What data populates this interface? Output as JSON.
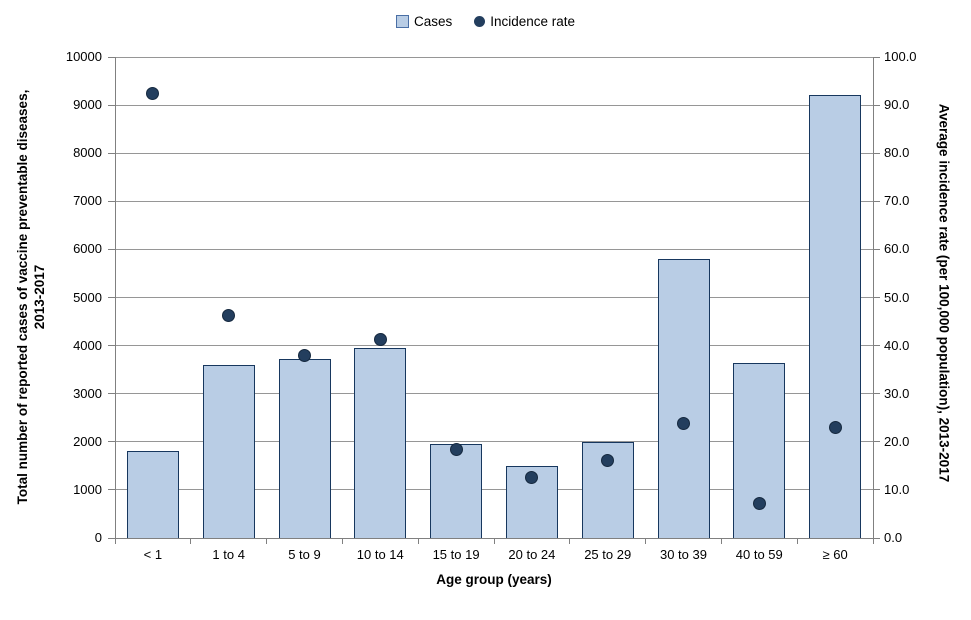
{
  "legend": {
    "cases_label": "Cases",
    "incidence_label": "Incidence rate"
  },
  "axes": {
    "left_title_line1": "Total number of reported cases of vaccine preventable diseases,",
    "left_title_line2": "2013-2017",
    "right_title": "Average incidence rate (per 100,000 population), 2013-2017",
    "x_title": "Age group (years)"
  },
  "chart_data": {
    "type": "bar",
    "subtype": "bar-with-scatter-overlay-dual-axis",
    "categories": [
      "< 1",
      "1 to 4",
      "5 to 9",
      "10 to 14",
      "15 to 19",
      "20 to 24",
      "25 to 29",
      "30 to 39",
      "40 to 59",
      "≥ 60"
    ],
    "series": [
      {
        "name": "Cases",
        "type": "bar",
        "axis": "left",
        "values": [
          1800,
          3600,
          3730,
          3950,
          1950,
          1490,
          1990,
          5800,
          3640,
          9200
        ]
      },
      {
        "name": "Incidence rate",
        "type": "scatter",
        "axis": "right",
        "values": [
          92.4,
          46.3,
          37.9,
          41.3,
          18.5,
          12.5,
          16.1,
          23.8,
          7.2,
          23.0
        ]
      }
    ],
    "title": "",
    "xlabel": "Age group (years)",
    "ylabel_left": "Total number of reported cases of vaccine preventable diseases, 2013-2017",
    "ylabel_right": "Average incidence rate (per 100,000 population), 2013-2017",
    "left_axis": {
      "min": 0,
      "max": 10000,
      "step": 1000,
      "tick_labels": [
        "0",
        "1000",
        "2000",
        "3000",
        "4000",
        "5000",
        "6000",
        "7000",
        "8000",
        "9000",
        "10000"
      ]
    },
    "right_axis": {
      "min": 0,
      "max": 100,
      "step": 10,
      "tick_labels": [
        "0.0",
        "10.0",
        "20.0",
        "30.0",
        "40.0",
        "50.0",
        "60.0",
        "70.0",
        "80.0",
        "90.0",
        "100.0"
      ]
    },
    "grid": "horizontal-only",
    "legend_position": "top-center",
    "colors": {
      "bar_fill": "#b9cde5",
      "bar_border": "#17375e",
      "dot_fill": "#233e5e",
      "gridline": "#969696",
      "axis_line": "#808080",
      "text": "#000000"
    }
  }
}
